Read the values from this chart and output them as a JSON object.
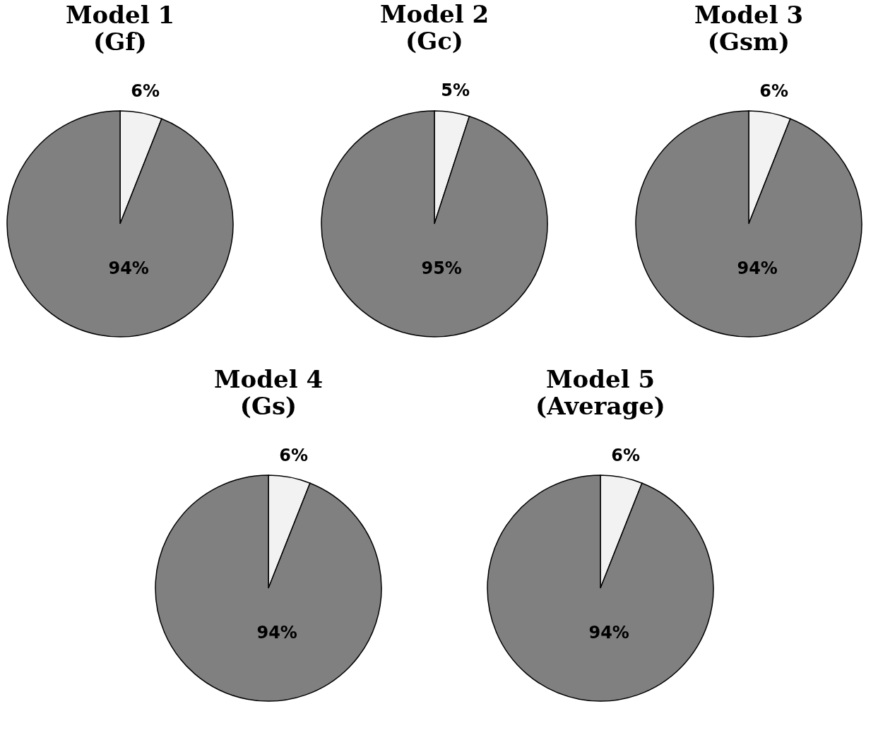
{
  "chart_data": [
    {
      "type": "pie",
      "title": "Model 1",
      "subtitle": "(Gf)",
      "categories": [
        null,
        null
      ],
      "values": [
        6,
        94
      ],
      "colors": [
        "#f2f2f2",
        "#808080"
      ],
      "value_labels": [
        "6%",
        "94%"
      ],
      "legend": false
    },
    {
      "type": "pie",
      "title": "Model 2",
      "subtitle": "(Gc)",
      "categories": [
        null,
        null
      ],
      "values": [
        5,
        95
      ],
      "colors": [
        "#f2f2f2",
        "#808080"
      ],
      "value_labels": [
        "5%",
        "95%"
      ],
      "legend": false
    },
    {
      "type": "pie",
      "title": "Model 3",
      "subtitle": "(Gsm)",
      "categories": [
        null,
        null
      ],
      "values": [
        6,
        94
      ],
      "colors": [
        "#f2f2f2",
        "#808080"
      ],
      "value_labels": [
        "6%",
        "94%"
      ],
      "legend": false
    },
    {
      "type": "pie",
      "title": "Model 4",
      "subtitle": "(Gs)",
      "categories": [
        null,
        null
      ],
      "values": [
        6,
        94
      ],
      "colors": [
        "#f2f2f2",
        "#808080"
      ],
      "value_labels": [
        "6%",
        "94%"
      ],
      "legend": false
    },
    {
      "type": "pie",
      "title": "Model 5",
      "subtitle": "(Average)",
      "categories": [
        null,
        null
      ],
      "values": [
        6,
        94
      ],
      "colors": [
        "#f2f2f2",
        "#808080"
      ],
      "value_labels": [
        "6%",
        "94%"
      ],
      "legend": false
    }
  ]
}
